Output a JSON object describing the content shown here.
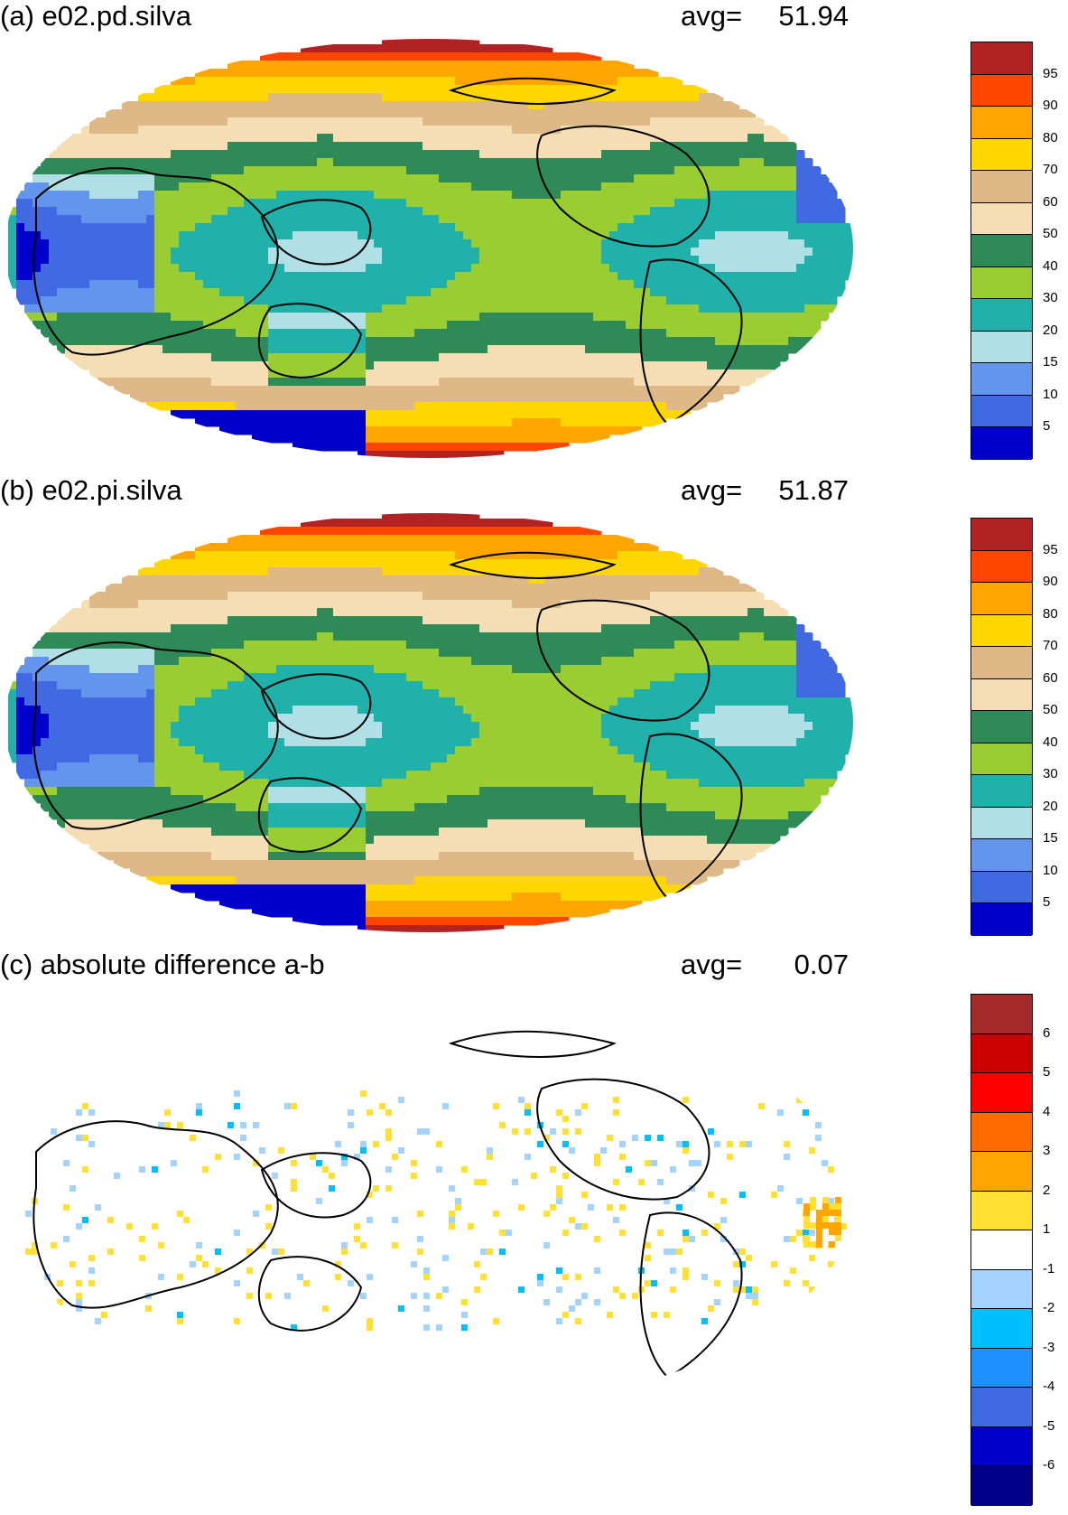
{
  "panels": [
    {
      "title": "(a) e02.pd.silva",
      "avg_label": "avg=",
      "avg_value": "51.94",
      "field": "sst-like",
      "colorbar": {
        "colors": [
          "#b22222",
          "#ff4500",
          "#ffa500",
          "#ffd700",
          "#deb887",
          "#f5deb3",
          "#2e8b57",
          "#9acd32",
          "#20b2aa",
          "#b0e0e6",
          "#6495ed",
          "#4169e1",
          "#0000cd"
        ],
        "ticks": [
          "95",
          "90",
          "80",
          "70",
          "60",
          "50",
          "40",
          "30",
          "20",
          "15",
          "10",
          "5"
        ]
      }
    },
    {
      "title": "(b) e02.pi.silva",
      "avg_label": "avg=",
      "avg_value": "51.87",
      "field": "sst-like",
      "colorbar": {
        "colors": [
          "#b22222",
          "#ff4500",
          "#ffa500",
          "#ffd700",
          "#deb887",
          "#f5deb3",
          "#2e8b57",
          "#9acd32",
          "#20b2aa",
          "#b0e0e6",
          "#6495ed",
          "#4169e1",
          "#0000cd"
        ],
        "ticks": [
          "95",
          "90",
          "80",
          "70",
          "60",
          "50",
          "40",
          "30",
          "20",
          "15",
          "10",
          "5"
        ]
      }
    },
    {
      "title": "(c) absolute difference a-b",
      "avg_label": "avg=",
      "avg_value": "0.07",
      "field": "difference",
      "colorbar": {
        "colors": [
          "#a52a2a",
          "#cd0000",
          "#ff0000",
          "#ff6a00",
          "#ffa500",
          "#ffe033",
          "#ffffff",
          "#a4d3ff",
          "#00bfff",
          "#1e90ff",
          "#4169e1",
          "#0000cd",
          "#00008b"
        ],
        "ticks": [
          "6",
          "5",
          "4",
          "3",
          "2",
          "1",
          "-1",
          "-2",
          "-3",
          "-4",
          "-5",
          "-6"
        ]
      }
    }
  ]
}
